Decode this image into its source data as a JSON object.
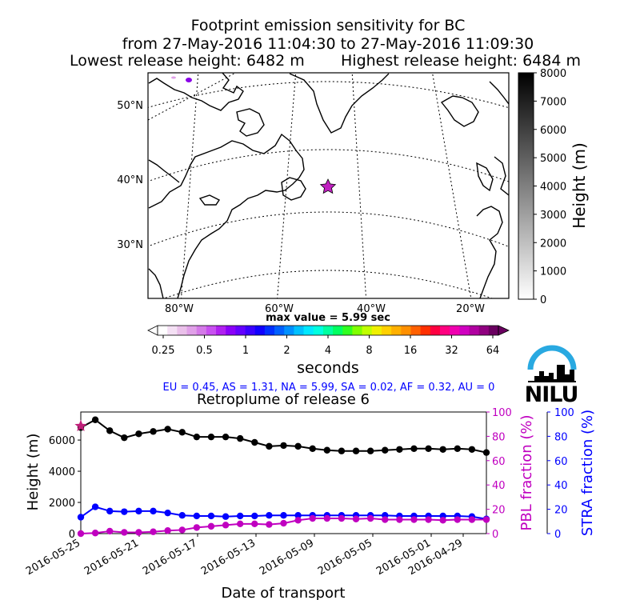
{
  "header": {
    "title_line1": "Footprint emission sensitivity for BC",
    "title_line2": "from 27-May-2016 11:04:30 to 27-May-2016 11:09:30",
    "lowest_release": "Lowest release height: 6482 m",
    "highest_release": "Highest release height: 6484 m"
  },
  "map": {
    "lat_labels": [
      "50°N",
      "40°N",
      "30°N"
    ],
    "lon_labels": [
      "80°W",
      "60°W",
      "40°W",
      "20°W"
    ],
    "max_value": "max value = 5.99 sec"
  },
  "height_colorbar": {
    "label": "Height (m)",
    "ticks": [
      "8000",
      "7000",
      "6000",
      "5000",
      "4000",
      "3000",
      "2000",
      "1000",
      "0"
    ]
  },
  "sensitivity_colorbar": {
    "label": "seconds",
    "ticks": [
      "0.25",
      "0.5",
      "1",
      "2",
      "4",
      "8",
      "16",
      "32",
      "64"
    ],
    "colors": [
      "#ffffff",
      "#f4e0f4",
      "#eac0ea",
      "#e0a0e8",
      "#d47ae8",
      "#c850f0",
      "#b020f0",
      "#8a00f8",
      "#6400ff",
      "#3a00ff",
      "#1000ff",
      "#0030ff",
      "#0060ff",
      "#0090ff",
      "#00c0ff",
      "#00e8ff",
      "#00ffe0",
      "#00ffa0",
      "#00ff60",
      "#30ff20",
      "#80ff00",
      "#c0ff00",
      "#f0f000",
      "#ffd000",
      "#ffb000",
      "#ff9000",
      "#ff6000",
      "#ff3000",
      "#ff0040",
      "#ff0080",
      "#f000b0",
      "#d000c0",
      "#b000a0",
      "#900080",
      "#6a0060"
    ]
  },
  "region_fractions": "EU = 0.45,  AS = 1.31,  NA = 5.99,  SA = 0.02,  AF = 0.32,  AU = 0",
  "logo": {
    "text": "NILU",
    "arc_color": "#29a9e1"
  },
  "chart_data": {
    "type": "line",
    "title": "Retroplume of release 6",
    "xlabel": "Date of transport",
    "ylabel": "Height (m)",
    "y2label": "PBL fraction (%)",
    "y3label": "STRA fraction (%)",
    "x_ticks": [
      "2016-05-25",
      "2016-05-21",
      "2016-05-17",
      "2016-05-13",
      "2016-05-09",
      "2016-05-05",
      "2016-05-01",
      "2016-04-29"
    ],
    "ylim": [
      0,
      7800
    ],
    "y_ticks": [
      "0",
      "2000",
      "4000",
      "6000"
    ],
    "y2lim": [
      0,
      100
    ],
    "y2_ticks": [
      "0",
      "20",
      "40",
      "60",
      "80",
      "100"
    ],
    "y3lim": [
      0,
      100
    ],
    "y3_ticks": [
      "0",
      "20",
      "40",
      "60",
      "80",
      "100"
    ],
    "release_height": 6900,
    "series": [
      {
        "color": "#000000",
        "axis": "height",
        "values": [
          6800,
          7300,
          6600,
          6150,
          6400,
          6550,
          6700,
          6500,
          6200,
          6200,
          6200,
          6100,
          5850,
          5600,
          5650,
          5600,
          5450,
          5350,
          5300,
          5300,
          5300,
          5350,
          5400,
          5450,
          5450,
          5400,
          5450,
          5400,
          5200
        ]
      },
      {
        "color": "#0000ff",
        "axis": "stra",
        "values": [
          13.5,
          22,
          18.5,
          18,
          18.5,
          18.5,
          17,
          15,
          14.5,
          14.5,
          14,
          14.5,
          14.5,
          15,
          15,
          15,
          15,
          15,
          15,
          15,
          15,
          15,
          14.5,
          14.5,
          14.5,
          14.5,
          14.5,
          14,
          12
        ]
      },
      {
        "color": "#c000c0",
        "axis": "pbl",
        "values": [
          0,
          0.5,
          2,
          1,
          1,
          1.5,
          2.5,
          3,
          5,
          6,
          7,
          8,
          8,
          7.5,
          8.5,
          11,
          12.5,
          12.5,
          12.5,
          12,
          12.5,
          11.5,
          11.5,
          11.5,
          11.5,
          11,
          11.5,
          11.5,
          11.5
        ]
      }
    ]
  }
}
